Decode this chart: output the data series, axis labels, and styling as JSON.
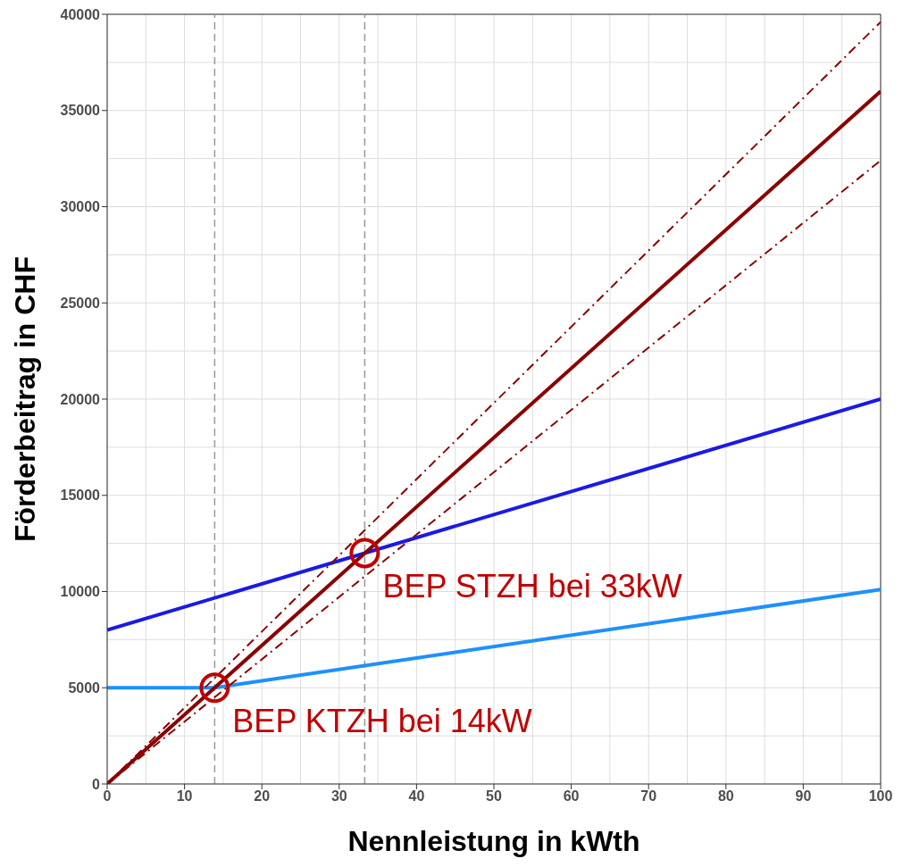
{
  "chart_data": {
    "type": "line",
    "xlabel": "Nennleistung in kWth",
    "ylabel": "Förderbeitrag in CHF",
    "xlim": [
      0,
      100
    ],
    "xticks": [
      0,
      10,
      20,
      30,
      40,
      50,
      60,
      70,
      80,
      90,
      100
    ],
    "ylim": [
      0,
      40000
    ],
    "yticks": [
      0,
      5000,
      10000,
      15000,
      20000,
      25000,
      30000,
      35000,
      40000
    ],
    "grid": true,
    "legend": false,
    "marker": "none",
    "series": [
      {
        "color": "#1a1ae6",
        "x": [
          0,
          100
        ],
        "values": [
          8000,
          20000
        ]
      },
      {
        "color": "#1e90ff",
        "x": [
          0,
          13.9,
          100
        ],
        "values": [
          5000,
          5000,
          10100
        ]
      },
      {
        "color": "#8b0000",
        "x": [
          0,
          100
        ],
        "values": [
          0,
          36000
        ]
      },
      {
        "color": "#8b0000",
        "x": [
          0,
          100
        ],
        "values": [
          0,
          39600
        ],
        "line_style": "dashed"
      },
      {
        "color": "#8b0000",
        "x": [
          0,
          100
        ],
        "values": [
          0,
          32400
        ],
        "line_style": "dashed"
      },
      {
        "type": "scatter",
        "color": "#c00000",
        "marker": "circle",
        "x": [
          13.9,
          33.3
        ],
        "values": [
          5000,
          12000
        ]
      }
    ],
    "ref_lines": [
      {
        "axis": "x",
        "value": 13.9,
        "color": "#999999",
        "line_style": "dashed"
      },
      {
        "axis": "x",
        "value": 33.3,
        "color": "#999999",
        "line_style": "dashed"
      }
    ],
    "annotations": [
      {
        "text": "BEP STZH bei 33kW",
        "x": 33.3,
        "y": 12000
      },
      {
        "text": "BEP KTZH bei 14kW",
        "x": 13.9,
        "y": 5000
      }
    ]
  }
}
